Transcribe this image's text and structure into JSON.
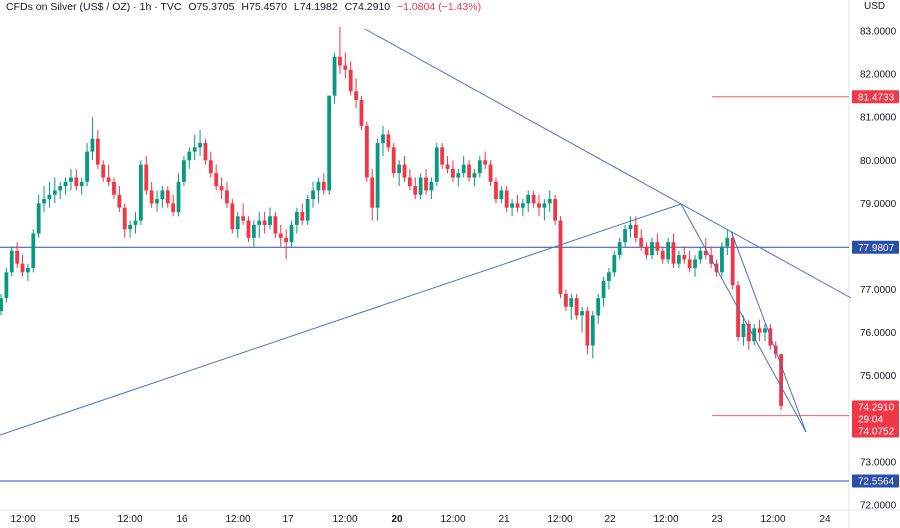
{
  "legend": {
    "symbol": "CFDs on Silver (US$ / OZ) · 1h · TVC",
    "open": "O75.3705",
    "high": "H75.4570",
    "low": "L74.1982",
    "close": "C74.2910",
    "change": "−1.0804 (−1.43%)"
  },
  "currency": "USD",
  "colors": {
    "up": "#089981",
    "down": "#f23645",
    "trendline": "#4a72c4",
    "level": "#2a4fa8",
    "red_level": "#f23645"
  },
  "chart_data": {
    "type": "candlestick",
    "title": "CFDs on Silver (US$ / OZ) · 1h · TVC",
    "ylabel": "USD",
    "ylim": [
      71.9,
      83.3
    ],
    "y_ticks": [
      "83.0000",
      "82.0000",
      "81.0000",
      "80.0000",
      "79.0000",
      "78.0000",
      "77.0000",
      "76.0000",
      "75.0000",
      "74.0000",
      "73.0000",
      "72.0000"
    ],
    "x_ticks": [
      "12:00",
      "15",
      "12:00",
      "16",
      "12:00",
      "17",
      "12:00",
      "20",
      "12:00",
      "21",
      "12:00",
      "22",
      "12:00",
      "23",
      "12:00",
      "24"
    ],
    "price_labels": [
      {
        "value": "81.4733",
        "kind": "red"
      },
      {
        "value": "77.9807",
        "kind": "blue"
      },
      {
        "value": "74.2910",
        "kind": "red"
      },
      {
        "value": "29:04",
        "kind": "red"
      },
      {
        "value": "74.0752",
        "kind": "red"
      },
      {
        "value": "72.5564",
        "kind": "blue"
      }
    ],
    "horizontal_levels": [
      {
        "price": 77.9807,
        "style": "full",
        "color": "blue"
      },
      {
        "price": 72.5564,
        "style": "full",
        "color": "blue"
      },
      {
        "price": 81.4733,
        "style": "segment",
        "color": "red"
      },
      {
        "price": 74.0752,
        "style": "segment",
        "color": "red"
      }
    ],
    "trendlines": [
      {
        "from": [
          0,
          73.65
        ],
        "to": [
          155,
          79.0
        ]
      },
      {
        "from": [
          83,
          83.0
        ],
        "to": [
          155,
          77.05
        ]
      },
      {
        "from": [
          155,
          79.0
        ],
        "to": [
          208,
          76.9
        ]
      },
      {
        "from": [
          168,
          78.3
        ],
        "to": [
          185,
          73.8
        ]
      }
    ],
    "candles": [
      [
        76.5,
        76.9,
        76.4,
        76.8
      ],
      [
        76.8,
        77.5,
        76.7,
        77.4
      ],
      [
        77.4,
        78.0,
        77.3,
        77.9
      ],
      [
        77.9,
        78.1,
        77.5,
        77.6
      ],
      [
        77.6,
        77.8,
        77.3,
        77.4
      ],
      [
        77.4,
        77.6,
        77.2,
        77.5
      ],
      [
        77.5,
        78.4,
        77.4,
        78.3
      ],
      [
        78.3,
        79.2,
        78.2,
        79.0
      ],
      [
        79.0,
        79.4,
        78.8,
        79.1
      ],
      [
        79.1,
        79.5,
        78.9,
        79.2
      ],
      [
        79.2,
        79.6,
        79.0,
        79.3
      ],
      [
        79.3,
        79.5,
        79.1,
        79.4
      ],
      [
        79.4,
        79.6,
        79.2,
        79.5
      ],
      [
        79.5,
        79.8,
        79.3,
        79.6
      ],
      [
        79.6,
        79.8,
        79.3,
        79.4
      ],
      [
        79.4,
        79.6,
        79.2,
        79.5
      ],
      [
        79.5,
        80.4,
        79.4,
        80.2
      ],
      [
        80.2,
        81.0,
        80.0,
        80.5
      ],
      [
        80.5,
        80.7,
        79.8,
        79.9
      ],
      [
        79.9,
        80.0,
        79.5,
        79.6
      ],
      [
        79.6,
        79.9,
        79.4,
        79.5
      ],
      [
        79.5,
        79.6,
        79.1,
        79.2
      ],
      [
        79.2,
        79.4,
        78.8,
        78.9
      ],
      [
        78.9,
        79.0,
        78.2,
        78.4
      ],
      [
        78.4,
        78.6,
        78.2,
        78.5
      ],
      [
        78.5,
        78.8,
        78.3,
        78.6
      ],
      [
        78.6,
        80.0,
        78.5,
        79.9
      ],
      [
        79.9,
        80.1,
        79.2,
        79.3
      ],
      [
        79.3,
        79.5,
        78.9,
        79.0
      ],
      [
        79.0,
        79.3,
        78.8,
        79.1
      ],
      [
        79.1,
        79.4,
        78.9,
        79.3
      ],
      [
        79.3,
        79.4,
        78.9,
        79.0
      ],
      [
        79.0,
        79.2,
        78.7,
        78.8
      ],
      [
        78.8,
        79.7,
        78.7,
        79.5
      ],
      [
        79.5,
        80.1,
        79.4,
        80.0
      ],
      [
        80.0,
        80.3,
        79.8,
        80.2
      ],
      [
        80.2,
        80.6,
        80.0,
        80.3
      ],
      [
        80.3,
        80.7,
        80.1,
        80.4
      ],
      [
        80.4,
        80.5,
        79.9,
        80.0
      ],
      [
        80.0,
        80.2,
        79.6,
        79.7
      ],
      [
        79.7,
        79.9,
        79.3,
        79.4
      ],
      [
        79.4,
        79.6,
        79.1,
        79.3
      ],
      [
        79.3,
        79.5,
        78.9,
        79.0
      ],
      [
        79.0,
        79.1,
        78.3,
        78.4
      ],
      [
        78.4,
        78.8,
        78.2,
        78.7
      ],
      [
        78.7,
        79.0,
        78.5,
        78.6
      ],
      [
        78.6,
        78.7,
        78.1,
        78.2
      ],
      [
        78.2,
        78.6,
        78.0,
        78.5
      ],
      [
        78.5,
        78.8,
        78.2,
        78.6
      ],
      [
        78.6,
        78.8,
        78.3,
        78.5
      ],
      [
        78.5,
        78.9,
        78.4,
        78.7
      ],
      [
        78.7,
        78.8,
        78.2,
        78.3
      ],
      [
        78.3,
        78.5,
        78.0,
        78.2
      ],
      [
        78.2,
        78.4,
        77.7,
        78.1
      ],
      [
        78.1,
        78.6,
        78.0,
        78.5
      ],
      [
        78.5,
        78.9,
        78.3,
        78.8
      ],
      [
        78.8,
        79.0,
        78.5,
        78.6
      ],
      [
        78.6,
        79.2,
        78.5,
        79.1
      ],
      [
        79.1,
        79.5,
        78.9,
        79.3
      ],
      [
        79.3,
        79.6,
        79.0,
        79.5
      ],
      [
        79.5,
        79.7,
        79.2,
        79.3
      ],
      [
        79.3,
        81.5,
        79.2,
        81.5
      ],
      [
        81.5,
        82.5,
        81.3,
        82.4
      ],
      [
        82.4,
        83.1,
        82.0,
        82.2
      ],
      [
        82.2,
        82.5,
        81.9,
        82.1
      ],
      [
        82.1,
        82.3,
        81.5,
        81.6
      ],
      [
        81.6,
        81.9,
        81.2,
        81.4
      ],
      [
        81.4,
        81.5,
        80.7,
        80.8
      ],
      [
        80.8,
        80.9,
        79.5,
        79.6
      ],
      [
        79.6,
        79.8,
        78.6,
        78.9
      ],
      [
        78.9,
        80.5,
        78.6,
        80.4
      ],
      [
        80.4,
        80.8,
        80.1,
        80.6
      ],
      [
        80.6,
        80.7,
        80.2,
        80.3
      ],
      [
        80.3,
        80.4,
        79.6,
        79.7
      ],
      [
        79.7,
        80.0,
        79.4,
        79.9
      ],
      [
        79.9,
        80.1,
        79.5,
        79.6
      ],
      [
        79.6,
        79.8,
        79.3,
        79.4
      ],
      [
        79.4,
        79.6,
        79.1,
        79.2
      ],
      [
        79.2,
        79.7,
        79.1,
        79.6
      ],
      [
        79.6,
        79.8,
        79.2,
        79.3
      ],
      [
        79.3,
        79.6,
        79.1,
        79.5
      ],
      [
        79.5,
        80.4,
        79.4,
        80.3
      ],
      [
        80.3,
        80.4,
        79.8,
        79.9
      ],
      [
        79.9,
        80.1,
        79.7,
        79.8
      ],
      [
        79.8,
        80.0,
        79.5,
        79.6
      ],
      [
        79.6,
        79.8,
        79.4,
        79.7
      ],
      [
        79.7,
        80.1,
        79.6,
        79.9
      ],
      [
        79.9,
        80.0,
        79.5,
        79.6
      ],
      [
        79.6,
        79.8,
        79.4,
        79.7
      ],
      [
        79.7,
        80.1,
        79.6,
        80.0
      ],
      [
        80.0,
        80.2,
        79.8,
        79.9
      ],
      [
        79.9,
        80.0,
        79.4,
        79.5
      ],
      [
        79.5,
        79.6,
        79.0,
        79.1
      ],
      [
        79.1,
        79.4,
        79.0,
        79.3
      ],
      [
        79.3,
        79.4,
        78.8,
        78.9
      ],
      [
        78.9,
        79.1,
        78.7,
        79.0
      ],
      [
        79.0,
        79.2,
        78.8,
        78.9
      ],
      [
        78.9,
        79.1,
        78.7,
        79.0
      ],
      [
        79.0,
        79.3,
        78.8,
        79.2
      ],
      [
        79.2,
        79.3,
        78.9,
        79.0
      ],
      [
        79.0,
        79.2,
        78.7,
        78.9
      ],
      [
        78.9,
        79.1,
        78.6,
        79.0
      ],
      [
        79.0,
        79.3,
        78.8,
        79.1
      ],
      [
        79.1,
        79.2,
        78.5,
        78.6
      ],
      [
        78.6,
        78.7,
        76.8,
        76.9
      ],
      [
        76.9,
        77.0,
        76.5,
        76.6
      ],
      [
        76.6,
        76.9,
        76.3,
        76.8
      ],
      [
        76.8,
        76.9,
        76.3,
        76.4
      ],
      [
        76.4,
        76.6,
        76.0,
        76.5
      ],
      [
        76.5,
        76.6,
        75.5,
        75.7
      ],
      [
        75.7,
        76.5,
        75.4,
        76.4
      ],
      [
        76.4,
        76.9,
        76.2,
        76.8
      ],
      [
        76.8,
        77.3,
        76.6,
        77.2
      ],
      [
        77.2,
        77.5,
        77.0,
        77.4
      ],
      [
        77.4,
        77.9,
        77.3,
        77.8
      ],
      [
        77.8,
        78.2,
        77.7,
        78.1
      ],
      [
        78.1,
        78.5,
        78.0,
        78.4
      ],
      [
        78.4,
        78.7,
        78.2,
        78.5
      ],
      [
        78.5,
        78.7,
        78.1,
        78.2
      ],
      [
        78.2,
        78.4,
        77.9,
        78.0
      ],
      [
        78.0,
        78.1,
        77.7,
        77.8
      ],
      [
        77.8,
        78.2,
        77.7,
        78.1
      ],
      [
        78.1,
        78.3,
        77.8,
        77.9
      ],
      [
        77.9,
        78.0,
        77.6,
        77.7
      ],
      [
        77.7,
        78.2,
        77.6,
        78.1
      ],
      [
        78.1,
        78.3,
        77.5,
        77.6
      ],
      [
        77.6,
        77.9,
        77.5,
        77.8
      ],
      [
        77.8,
        78.0,
        77.6,
        77.7
      ],
      [
        77.7,
        77.9,
        77.4,
        77.5
      ],
      [
        77.5,
        77.8,
        77.3,
        77.7
      ],
      [
        77.7,
        78.0,
        77.6,
        77.9
      ],
      [
        77.9,
        78.2,
        77.7,
        77.8
      ],
      [
        77.8,
        78.0,
        77.5,
        77.6
      ],
      [
        77.6,
        77.7,
        77.3,
        77.4
      ],
      [
        77.4,
        78.1,
        77.3,
        78.0
      ],
      [
        78.0,
        78.4,
        77.8,
        78.2
      ],
      [
        78.2,
        78.3,
        77.0,
        77.1
      ],
      [
        77.1,
        77.2,
        75.8,
        75.9
      ],
      [
        75.9,
        76.4,
        75.7,
        76.2
      ],
      [
        76.2,
        76.3,
        75.6,
        75.8
      ],
      [
        75.8,
        76.2,
        75.7,
        76.1
      ],
      [
        76.1,
        76.3,
        75.8,
        76.0
      ],
      [
        76.0,
        76.2,
        75.8,
        76.1
      ],
      [
        76.1,
        76.2,
        75.6,
        75.7
      ],
      [
        75.7,
        75.8,
        75.4,
        75.5
      ],
      [
        75.5,
        75.5,
        74.2,
        74.3
      ]
    ]
  }
}
